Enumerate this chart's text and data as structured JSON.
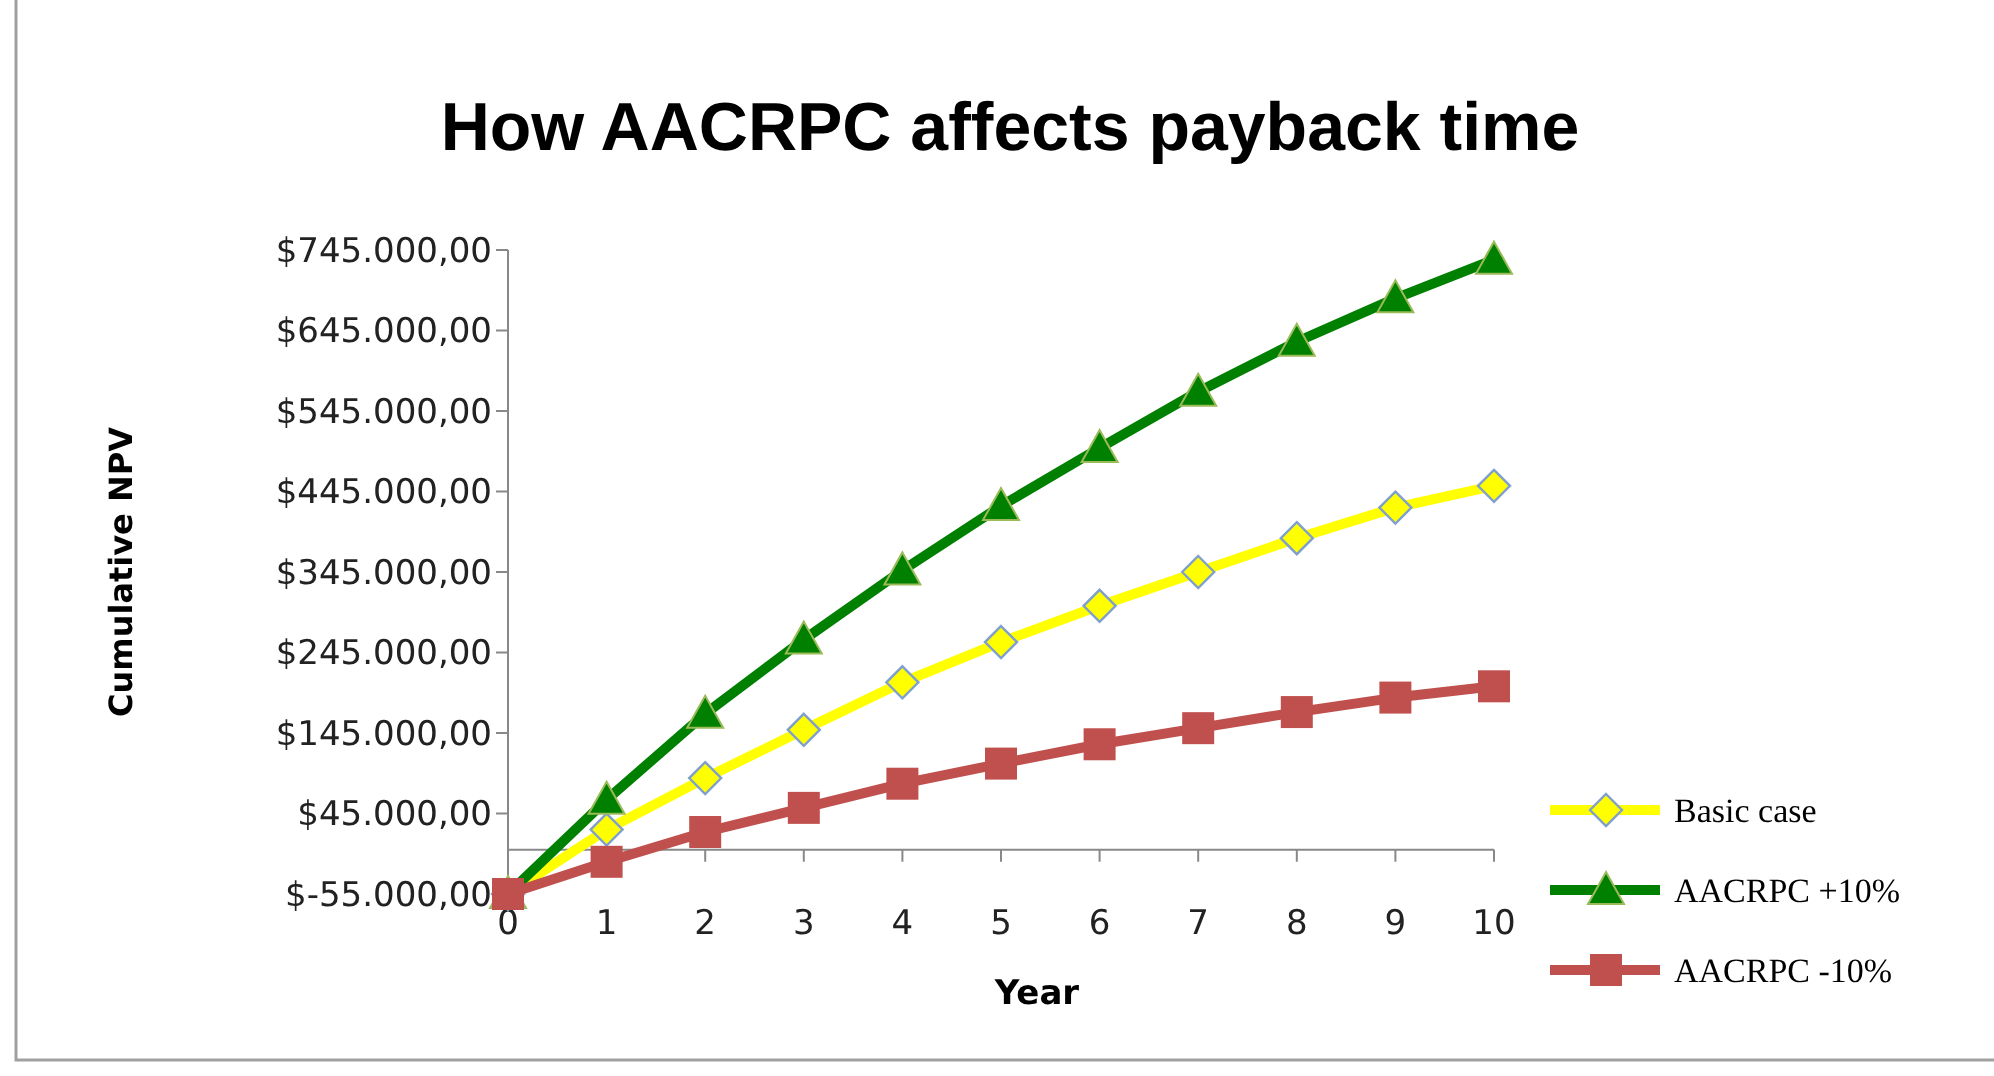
{
  "chart_data": {
    "type": "line",
    "title": "How AACRPC affects payback time",
    "xlabel": "Year",
    "ylabel": "Cumulative NPV",
    "x": [
      0,
      1,
      2,
      3,
      4,
      5,
      6,
      7,
      8,
      9,
      10
    ],
    "xlim": [
      0,
      10
    ],
    "xticks": [
      0,
      1,
      2,
      3,
      4,
      5,
      6,
      7,
      8,
      9,
      10
    ],
    "ylim": [
      -55000,
      745000
    ],
    "yticks": [
      {
        "value": -55000,
        "label": "$-55.000,00"
      },
      {
        "value": 45000,
        "label": "$45.000,00"
      },
      {
        "value": 145000,
        "label": "$145.000,00"
      },
      {
        "value": 245000,
        "label": "$245.000,00"
      },
      {
        "value": 345000,
        "label": "$345.000,00"
      },
      {
        "value": 445000,
        "label": "$445.000,00"
      },
      {
        "value": 545000,
        "label": "$545.000,00"
      },
      {
        "value": 645000,
        "label": "$645.000,00"
      },
      {
        "value": 745000,
        "label": "$745.000,00"
      }
    ],
    "grid": false,
    "legend": "right",
    "series": [
      {
        "name": "Basic case",
        "color": "#ffff00",
        "marker": "diamond",
        "values": [
          -55000,
          25000,
          89000,
          149000,
          208000,
          258000,
          303000,
          345000,
          387000,
          425000,
          452000
        ]
      },
      {
        "name": "AACRPC +10%",
        "color": "#008000",
        "marker": "triangle",
        "values": [
          -55000,
          62000,
          169000,
          261000,
          347000,
          427000,
          499000,
          569000,
          631000,
          685000,
          733000
        ]
      },
      {
        "name": "AACRPC -10%",
        "color": "#c0504d",
        "marker": "square",
        "values": [
          -55000,
          -15000,
          22000,
          52000,
          82000,
          107000,
          131000,
          151000,
          171000,
          189000,
          203000
        ]
      }
    ]
  }
}
